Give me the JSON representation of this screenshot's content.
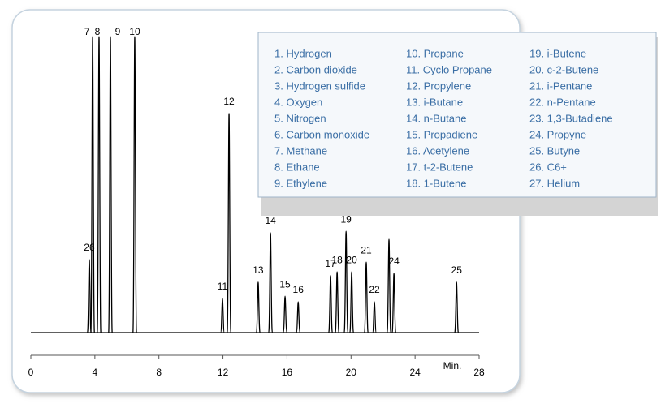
{
  "chart_data": {
    "type": "line",
    "labels": [
      "26",
      "7",
      "8",
      "9",
      "10",
      "11",
      "12",
      "13",
      "14",
      "15",
      "16",
      "17",
      "18",
      "19",
      "20",
      "21",
      "22",
      null,
      "24",
      "25"
    ],
    "x": [
      3.65,
      3.86,
      4.26,
      4.97,
      6.49,
      11.97,
      12.38,
      14.2,
      14.97,
      15.88,
      16.7,
      18.72,
      19.13,
      19.69,
      20.04,
      20.95,
      21.46,
      22.37,
      22.68,
      26.59
    ],
    "values": [
      24.7,
      100,
      100,
      100,
      100,
      11.5,
      74,
      17,
      33.7,
      12.3,
      10.4,
      19.2,
      20.5,
      34.2,
      20.5,
      23.8,
      10.4,
      31.5,
      20,
      17
    ],
    "color": "#000000",
    "xlim": [
      0,
      28
    ],
    "xticks": [
      0,
      4,
      8,
      12,
      16,
      20,
      24,
      28
    ],
    "x_label": "Min.",
    "ylim": [
      0,
      100
    ],
    "legend": [
      "1. Hydrogen",
      "2. Carbon dioxide",
      "3. Hydrogen sulfide",
      "4. Oxygen",
      "5. Nitrogen",
      "6. Carbon monoxide",
      "7. Methane",
      "8. Ethane",
      "9. Ethylene",
      "10. Propane",
      "11. Cyclo Propane",
      "12. Propylene",
      "13. i-Butane",
      "14. n-Butane",
      "15. Propadiene",
      "16. Acetylene",
      "17. t-2-Butene",
      "18. 1-Butene",
      "19. i-Butene",
      "20. c-2-Butene",
      "21. i-Pentane",
      "22. n-Pentane",
      "23. 1,3-Butadiene",
      "24. Propyne",
      "25. Butyne",
      "26. C6+",
      "27. Helium"
    ]
  }
}
